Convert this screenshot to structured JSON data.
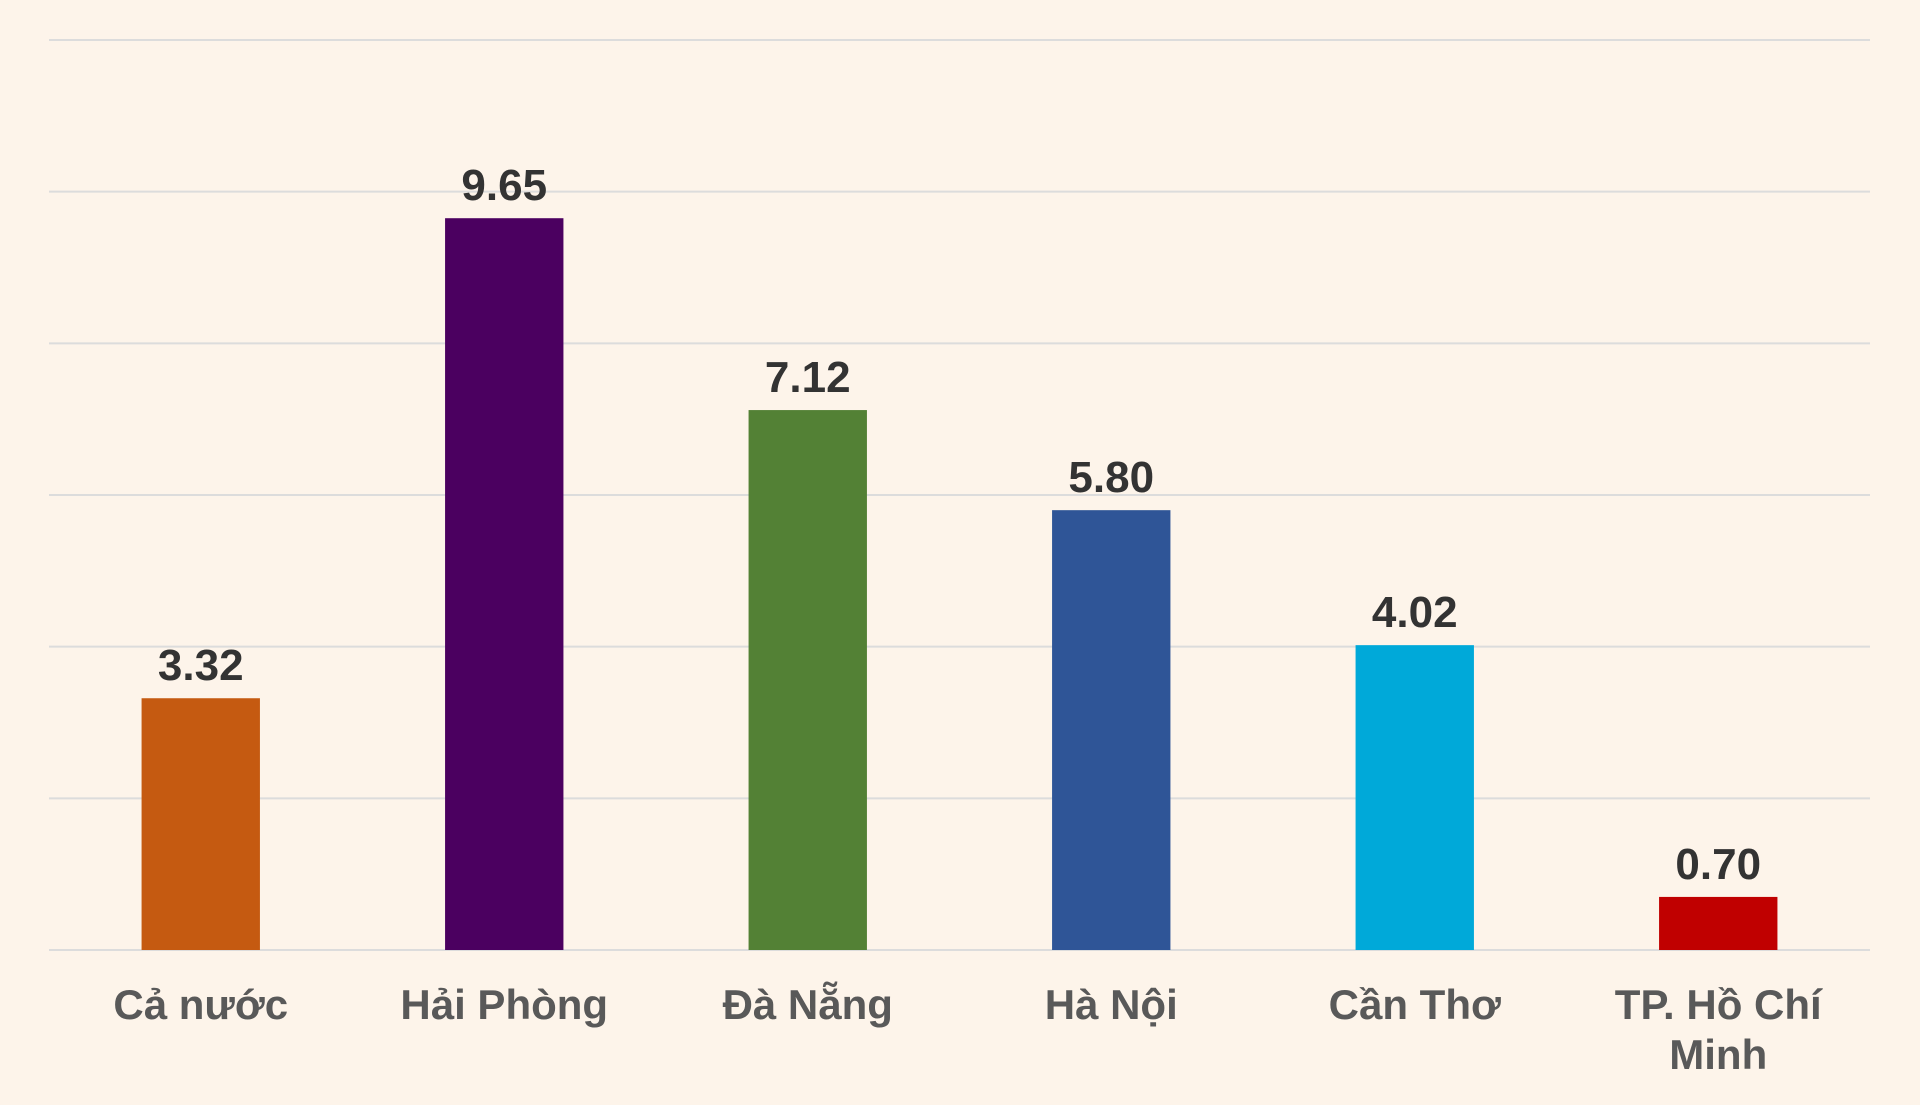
{
  "chart_data": {
    "type": "bar",
    "categories": [
      "Cả nước",
      "Hải Phòng",
      "Đà Nẵng",
      "Hà Nội",
      "Cần Thơ",
      "TP. Hồ Chí Minh"
    ],
    "values": [
      3.32,
      9.65,
      7.12,
      5.8,
      4.02,
      0.7
    ],
    "value_labels": [
      "3.32",
      "9.65",
      "7.12",
      "5.80",
      "4.02",
      "0.70"
    ],
    "colors": [
      "#c55a11",
      "#4b0060",
      "#538135",
      "#2f5597",
      "#00a9d9",
      "#c00000"
    ],
    "ylim": [
      0,
      12
    ],
    "yticks": [
      0,
      2,
      4,
      6,
      8,
      10,
      12
    ],
    "grid": true
  }
}
